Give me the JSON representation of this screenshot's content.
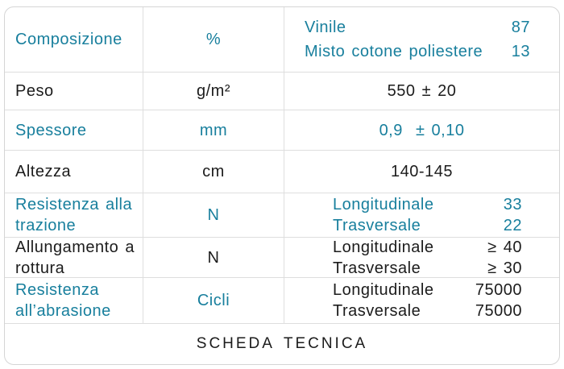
{
  "colors": {
    "accent": "#187f9d",
    "text": "#1c1c1c",
    "border": "#dedede",
    "background": "#ffffff"
  },
  "table": {
    "rows": [
      {
        "label": "Composizione",
        "unit": "%",
        "values": [
          {
            "name": "Vinile",
            "value": "87"
          },
          {
            "name": "Misto cotone poliestere",
            "value": "13"
          }
        ]
      },
      {
        "label": "Peso",
        "unit": "g/m²",
        "center_value": "550 ± 20"
      },
      {
        "label": "Spessore",
        "unit": "mm",
        "center_value": "0,9  ± 0,10"
      },
      {
        "label": "Altezza",
        "unit": "cm",
        "center_value": "140-145"
      },
      {
        "label": "Resistenza alla trazione",
        "unit": "N",
        "values": [
          {
            "name": "Longitudinale",
            "value": "33"
          },
          {
            "name": "Trasversale",
            "value": "22"
          }
        ]
      },
      {
        "label": "Allungamento a rottura",
        "unit": "N",
        "values": [
          {
            "name": "Longitudinale",
            "value": "≥ 40"
          },
          {
            "name": "Trasversale",
            "value": "≥ 30"
          }
        ]
      },
      {
        "label": "Resistenza all’abrasione",
        "unit": "Cicli",
        "values": [
          {
            "name": "Longitudinale",
            "value": "75000"
          },
          {
            "name": "Trasversale",
            "value": "75000"
          }
        ]
      }
    ],
    "footer": "SCHEDA TECNICA"
  }
}
